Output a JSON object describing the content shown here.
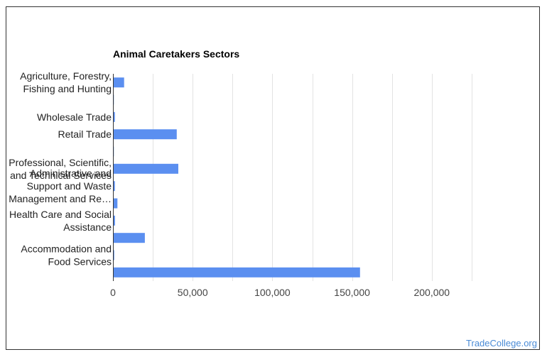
{
  "chart_data": {
    "type": "bar",
    "orientation": "horizontal",
    "title": "Animal Caretakers Sectors",
    "categories": [
      "Agriculture, Forestry, Fishing and Hunting",
      "",
      "Wholesale Trade",
      "Retail Trade",
      "",
      "Professional, Scientific, and Technical Services",
      "Administrative and Support and Waste Management and Re…",
      "",
      "Health Care and Social Assistance",
      "",
      "Accommodation and Food Services",
      ""
    ],
    "label_lines": [
      [
        "Agriculture, Forestry,",
        "Fishing and Hunting"
      ],
      [],
      [
        "Wholesale Trade"
      ],
      [
        "Retail Trade"
      ],
      [],
      [
        "Professional, Scientific,",
        "and Technical Services"
      ],
      [
        "Administrative and",
        "Support and Waste",
        "Management and Re…"
      ],
      [],
      [
        "Health Care and Social",
        "Assistance"
      ],
      [],
      [
        "Accommodation and",
        "Food Services"
      ],
      []
    ],
    "values": [
      7000,
      600,
      1200,
      40000,
      600,
      41000,
      1200,
      2800,
      1300,
      20000,
      800,
      155000
    ],
    "xlim": [
      0,
      250000
    ],
    "xticks": [
      0,
      50000,
      100000,
      150000,
      200000
    ],
    "xtick_labels": [
      "0",
      "50,000",
      "100,000",
      "150,000",
      "200,000"
    ],
    "grid": true,
    "bar_color": "#5b8ff0",
    "legend": "none"
  },
  "credit": "TradeCollege.org"
}
